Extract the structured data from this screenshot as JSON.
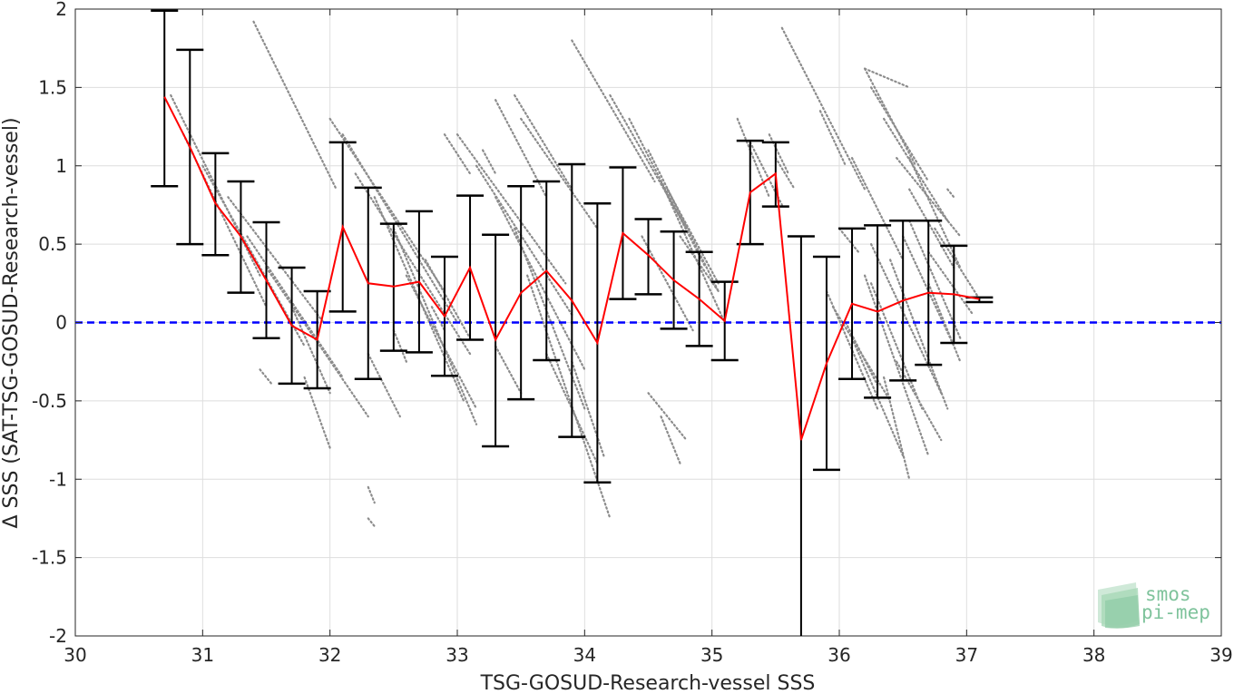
{
  "chart_data": {
    "type": "scatter",
    "xlabel": "TSG-GOSUD-Research-vessel SSS",
    "ylabel": "Δ SSS (SAT-TSG-GOSUD-Research-vessel)",
    "xlim": [
      30,
      39
    ],
    "ylim": [
      -2,
      2
    ],
    "x_ticks": [
      30,
      31,
      32,
      33,
      34,
      35,
      36,
      37,
      38,
      39
    ],
    "y_ticks": [
      2,
      1.5,
      1,
      0.5,
      0,
      -0.5,
      -1,
      -1.5,
      -2
    ],
    "x_tick_labels": [
      "30",
      "31",
      "32",
      "33",
      "34",
      "35",
      "36",
      "37",
      "38",
      "39"
    ],
    "y_tick_labels": [
      "2",
      "1.5",
      "1",
      "0.5",
      "0",
      "-0.5",
      "-1",
      "-1.5",
      "-2"
    ],
    "grid": true,
    "reference_line": {
      "y": 0,
      "style": "dashed",
      "color": "#0000ff"
    },
    "colors": {
      "scatter": "#8c8c8c",
      "mean_line": "#ff0000",
      "error_bars": "#000000"
    },
    "binned_statistics": {
      "x": [
        30.7,
        30.9,
        31.1,
        31.3,
        31.5,
        31.7,
        31.9,
        32.1,
        32.3,
        32.5,
        32.7,
        32.9,
        33.1,
        33.3,
        33.5,
        33.7,
        33.9,
        34.1,
        34.3,
        34.5,
        34.7,
        34.9,
        35.1,
        35.3,
        35.5,
        35.7,
        35.9,
        36.1,
        36.3,
        36.5,
        36.7,
        36.9,
        37.1
      ],
      "mean": [
        1.44,
        1.12,
        0.76,
        0.55,
        0.27,
        -0.02,
        -0.11,
        0.61,
        0.25,
        0.23,
        0.26,
        0.04,
        0.35,
        -0.11,
        0.19,
        0.33,
        0.14,
        -0.13,
        0.57,
        0.43,
        0.27,
        0.15,
        0.01,
        0.83,
        0.95,
        -0.75,
        -0.26,
        0.12,
        0.07,
        0.14,
        0.19,
        0.18,
        0.15
      ],
      "upper": [
        1.99,
        1.74,
        1.08,
        0.9,
        0.64,
        0.35,
        0.2,
        1.15,
        0.86,
        0.63,
        0.71,
        0.42,
        0.81,
        0.56,
        0.87,
        0.9,
        1.01,
        0.76,
        0.99,
        0.66,
        0.58,
        0.45,
        0.26,
        1.16,
        1.15,
        0.55,
        0.42,
        0.6,
        0.62,
        0.65,
        0.65,
        0.49,
        0.16
      ],
      "lower": [
        0.87,
        0.5,
        0.43,
        0.19,
        -0.1,
        -0.39,
        -0.42,
        0.07,
        -0.36,
        -0.18,
        -0.19,
        -0.34,
        -0.11,
        -0.79,
        -0.49,
        -0.24,
        -0.73,
        -1.02,
        0.15,
        0.18,
        -0.04,
        -0.15,
        -0.24,
        0.5,
        0.74,
        -2.0,
        -0.94,
        -0.36,
        -0.48,
        -0.37,
        -0.27,
        -0.13,
        0.13
      ]
    },
    "scatter_segments": [
      [
        30.75,
        1.45,
        31.45,
        0.3
      ],
      [
        30.85,
        1.2,
        31.5,
        0.1
      ],
      [
        31.0,
        1.0,
        31.8,
        -0.15
      ],
      [
        31.2,
        0.8,
        31.95,
        0.0
      ],
      [
        31.35,
        0.55,
        32.1,
        -0.35
      ],
      [
        31.5,
        0.35,
        32.3,
        -0.6
      ],
      [
        31.7,
        0.1,
        32.0,
        -0.45
      ],
      [
        31.8,
        -0.35,
        32.0,
        -0.8
      ],
      [
        31.45,
        -0.3,
        31.55,
        -0.4
      ],
      [
        32.0,
        1.3,
        32.9,
        0.2
      ],
      [
        32.1,
        1.2,
        33.0,
        0.0
      ],
      [
        32.2,
        0.95,
        33.1,
        -0.2
      ],
      [
        32.35,
        0.8,
        33.05,
        -0.5
      ],
      [
        32.5,
        0.6,
        33.15,
        -0.65
      ],
      [
        32.6,
        0.3,
        33.15,
        -0.55
      ],
      [
        32.3,
        -0.2,
        32.55,
        -0.6
      ],
      [
        32.3,
        -1.05,
        32.35,
        -1.15
      ],
      [
        32.3,
        -1.25,
        32.35,
        -1.3
      ],
      [
        32.5,
        -0.05,
        32.6,
        -0.25
      ],
      [
        32.75,
        0.4,
        33.1,
        -0.1
      ],
      [
        31.4,
        1.92,
        32.05,
        0.85
      ],
      [
        32.8,
        0.1,
        32.9,
        -0.05
      ],
      [
        33.0,
        1.2,
        33.85,
        0.25
      ],
      [
        33.15,
        1.0,
        33.9,
        0.05
      ],
      [
        33.3,
        0.8,
        34.0,
        -0.3
      ],
      [
        33.45,
        0.6,
        34.0,
        -0.55
      ],
      [
        33.55,
        0.3,
        34.2,
        -1.25
      ],
      [
        33.3,
        -0.15,
        33.5,
        -0.45
      ],
      [
        33.7,
        -0.2,
        34.1,
        -0.9
      ],
      [
        33.9,
        -0.25,
        34.15,
        -0.85
      ],
      [
        32.9,
        1.2,
        33.1,
        0.95
      ],
      [
        33.2,
        1.1,
        33.3,
        0.95
      ],
      [
        33.3,
        1.42,
        33.7,
        0.8
      ],
      [
        33.45,
        1.45,
        33.9,
        0.85
      ],
      [
        33.5,
        1.3,
        34.1,
        0.6
      ],
      [
        33.9,
        1.8,
        34.55,
        0.9
      ],
      [
        34.2,
        1.45,
        34.8,
        0.6
      ],
      [
        34.35,
        1.3,
        34.95,
        0.35
      ],
      [
        34.5,
        1.1,
        35.05,
        0.2
      ],
      [
        34.6,
        0.9,
        35.1,
        0.0
      ],
      [
        34.65,
        0.85,
        35.05,
        0.25
      ],
      [
        34.75,
        0.55,
        35.05,
        0.2
      ],
      [
        34.45,
        0.55,
        34.85,
        -0.05
      ],
      [
        34.5,
        -0.45,
        34.8,
        -0.75
      ],
      [
        34.6,
        -0.6,
        34.75,
        -0.9
      ],
      [
        35.2,
        1.3,
        35.45,
        0.8
      ],
      [
        35.3,
        1.15,
        35.55,
        0.75
      ],
      [
        35.45,
        1.2,
        35.6,
        0.95
      ],
      [
        35.5,
        1.05,
        35.65,
        0.85
      ],
      [
        35.55,
        1.88,
        36.2,
        0.85
      ],
      [
        35.85,
        1.35,
        36.05,
        1.0
      ],
      [
        35.9,
        0.2,
        36.3,
        -0.55
      ],
      [
        35.95,
        0.1,
        36.4,
        -0.5
      ],
      [
        36.05,
        0.0,
        36.3,
        -0.4
      ],
      [
        36.1,
        -0.1,
        36.5,
        -0.85
      ],
      [
        36.2,
        0.3,
        36.7,
        -0.85
      ],
      [
        36.25,
        0.5,
        36.8,
        -0.45
      ],
      [
        36.25,
        0.25,
        36.65,
        -0.55
      ],
      [
        36.35,
        -0.35,
        36.55,
        -1.0
      ],
      [
        36.4,
        0.4,
        36.85,
        -0.55
      ],
      [
        36.45,
        -0.25,
        36.8,
        -0.75
      ],
      [
        36.5,
        0.55,
        36.9,
        -0.15
      ],
      [
        36.2,
        1.62,
        36.6,
        1.0
      ],
      [
        36.25,
        1.5,
        36.7,
        0.9
      ],
      [
        36.35,
        1.3,
        36.85,
        0.65
      ],
      [
        36.45,
        1.05,
        36.95,
        0.55
      ],
      [
        36.55,
        1.05,
        36.95,
        0.35
      ],
      [
        36.55,
        0.85,
        36.9,
        0.35
      ],
      [
        36.7,
        0.45,
        37.05,
        0.05
      ],
      [
        36.75,
        0.6,
        37.1,
        0.15
      ],
      [
        36.1,
        1.05,
        36.5,
        0.4
      ],
      [
        36.55,
        0.65,
        36.95,
        -0.1
      ],
      [
        36.7,
        0.25,
        36.95,
        -0.25
      ],
      [
        36.85,
        0.85,
        36.9,
        0.8
      ],
      [
        36.2,
        1.62,
        36.55,
        1.5
      ],
      [
        36.0,
        0.6,
        36.15,
        0.45
      ]
    ]
  },
  "watermark": {
    "line1": "smos",
    "line2": "pi-mep"
  }
}
